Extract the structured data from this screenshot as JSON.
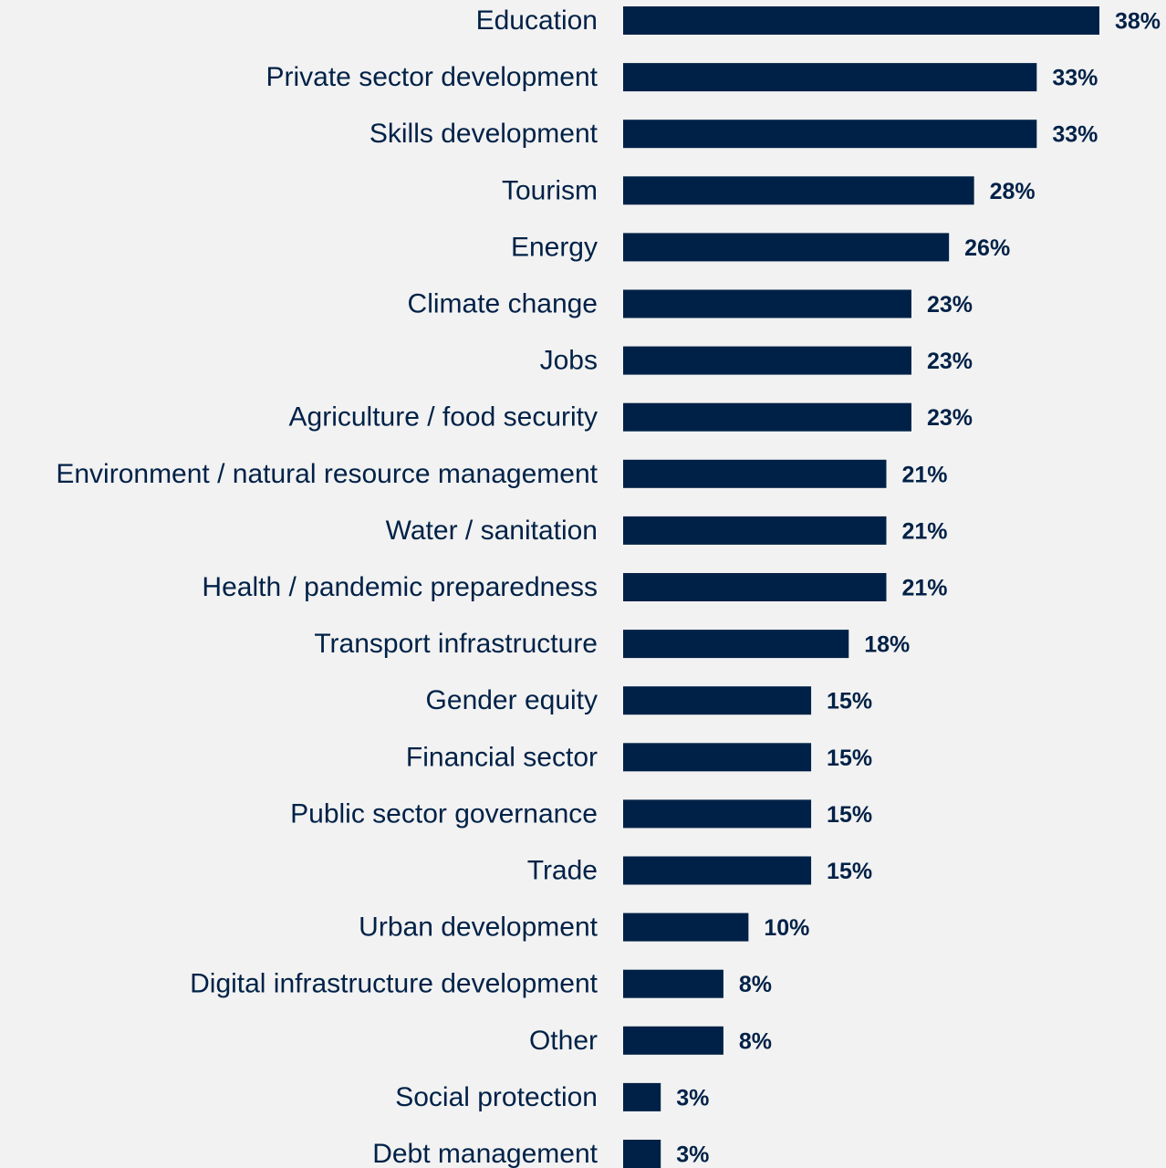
{
  "chart_data": {
    "type": "bar",
    "orientation": "horizontal",
    "title": "",
    "xlabel": "",
    "ylabel": "",
    "xlim": [
      0,
      38
    ],
    "grid": false,
    "legend": "none",
    "bar_color": "#002147",
    "background_color": "#f2f2f2",
    "value_suffix": "%",
    "categories": [
      "Education",
      "Private sector development",
      "Skills development",
      "Tourism",
      "Energy ",
      "Climate change",
      "Jobs",
      "Agriculture / food security",
      "Environment / natural resource management",
      "Water / sanitation ",
      "Health / pandemic preparedness",
      "Transport infrastructure",
      "Gender equity",
      "Financial sector",
      "Public sector governance",
      "Trade",
      "Urban development",
      "Digital infrastructure development",
      "Other",
      "Social protection",
      "Debt management"
    ],
    "values": [
      38,
      33,
      33,
      28,
      26,
      23,
      23,
      23,
      21,
      21,
      21,
      18,
      15,
      15,
      15,
      15,
      10,
      8,
      8,
      3,
      3
    ],
    "value_labels": [
      "38%",
      "33%",
      "33%",
      "28%",
      "26%",
      "23%",
      "23%",
      "23%",
      "21%",
      "21%",
      "21%",
      "18%",
      "15%",
      "15%",
      "15%",
      "15%",
      "10%",
      "8%",
      "8%",
      "3%",
      "3%"
    ]
  }
}
